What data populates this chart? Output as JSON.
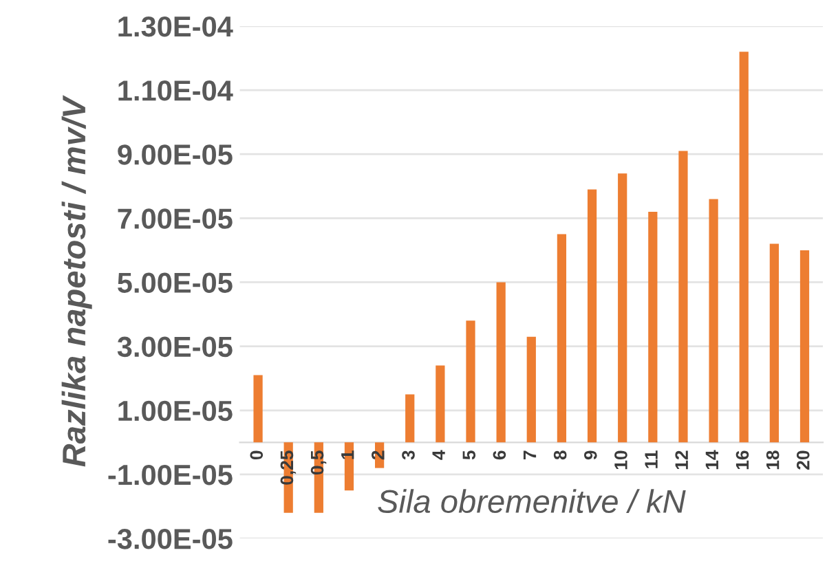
{
  "chart_data": {
    "type": "bar",
    "xlabel": "Sila obremenitve / kN",
    "ylabel": "Razlika napetosti / mv/V",
    "categories": [
      "0",
      "0,25",
      "0,5",
      "1",
      "2",
      "3",
      "4",
      "5",
      "6",
      "7",
      "8",
      "9",
      "10",
      "11",
      "12",
      "14",
      "16",
      "18",
      "20"
    ],
    "series": [
      {
        "color": "#ed7d31",
        "values": [
          2.1e-05,
          -2.2e-05,
          -2.2e-05,
          -1.5e-05,
          -8e-06,
          1.5e-05,
          2.4e-05,
          3.8e-05,
          5e-05,
          3.3e-05,
          6.5e-05,
          7.9e-05,
          8.4e-05,
          7.2e-05,
          9.1e-05,
          7.6e-05,
          0.000122,
          6.2e-05,
          6e-05
        ]
      }
    ],
    "ylim": [
      -3e-05,
      0.00013
    ],
    "yticks": [
      {
        "value": -3e-05,
        "label": "-3.00E-05"
      },
      {
        "value": -1e-05,
        "label": "-1.00E-05"
      },
      {
        "value": 1e-05,
        "label": "1.00E-05"
      },
      {
        "value": 3e-05,
        "label": "3.00E-05"
      },
      {
        "value": 5e-05,
        "label": "5.00E-05"
      },
      {
        "value": 7e-05,
        "label": "7.00E-05"
      },
      {
        "value": 9e-05,
        "label": "9.00E-05"
      },
      {
        "value": 0.00011,
        "label": "1.10E-04"
      },
      {
        "value": 0.00013,
        "label": "1.30E-04"
      }
    ],
    "grid": "y"
  }
}
